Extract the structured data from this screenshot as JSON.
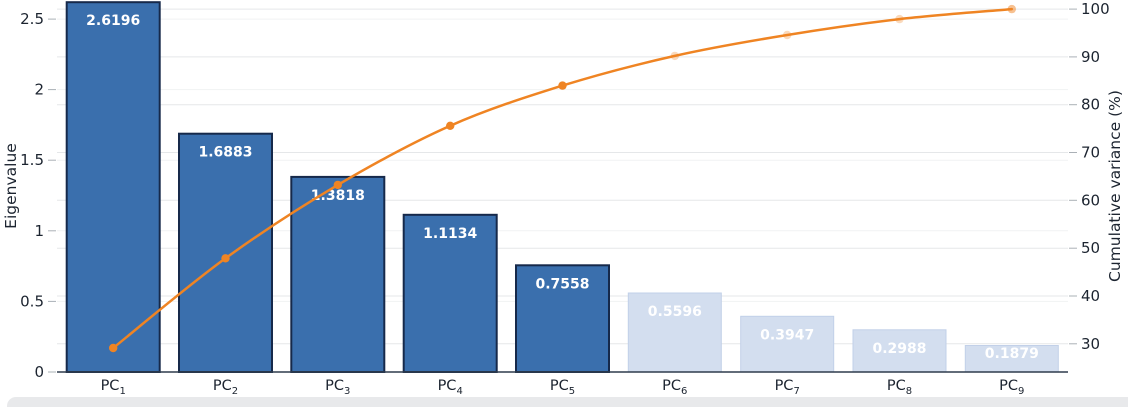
{
  "chart_data": {
    "type": "bar",
    "subtype": "scree-pareto (bars + cumulative line, dual y-axis)",
    "title": "",
    "legend": "none",
    "grid": true,
    "categories": [
      "PC1",
      "PC2",
      "PC3",
      "PC4",
      "PC5",
      "PC6",
      "PC7",
      "PC8",
      "PC9"
    ],
    "x_axis": {
      "tick_prefix": "PC",
      "tick_subscripts": [
        "1",
        "2",
        "3",
        "4",
        "5",
        "6",
        "7",
        "8",
        "9"
      ]
    },
    "series": [
      {
        "name": "Eigenvalue",
        "type": "bar",
        "axis": "left",
        "values": [
          2.6196,
          1.6883,
          1.3818,
          1.1134,
          0.7558,
          0.5596,
          0.3947,
          0.2988,
          0.1879
        ],
        "highlighted": [
          true,
          true,
          true,
          true,
          true,
          false,
          false,
          false,
          false
        ]
      },
      {
        "name": "Cumulative variance",
        "type": "line",
        "axis": "right",
        "values": [
          29.11,
          47.87,
          63.22,
          75.59,
          83.99,
          90.21,
          94.59,
          97.91,
          100.0
        ],
        "marker_emphasis": [
          1,
          1,
          1,
          1,
          1,
          0.3,
          0.3,
          0.3,
          0.5
        ]
      }
    ],
    "bar_labels": [
      "2.6196",
      "1.6883",
      "1.3818",
      "1.1134",
      "0.7558",
      "0.5596",
      "0.3947",
      "0.2988",
      "0.1879"
    ],
    "left_axis": {
      "title": "Eigenvalue",
      "tick_values": [
        0,
        0.5,
        1,
        1.5,
        2,
        2.5
      ],
      "tick_labels": [
        "0",
        "0.5",
        "1",
        "1.5",
        "2",
        "2.5"
      ],
      "range": [
        0,
        2.635
      ]
    },
    "right_axis": {
      "title": "Cumulative variance (%)",
      "tick_values": [
        30,
        40,
        50,
        60,
        70,
        80,
        90,
        100
      ],
      "tick_labels": [
        "30",
        "40",
        "50",
        "60",
        "70",
        "80",
        "90",
        "100"
      ],
      "range": [
        24.1,
        101.9
      ]
    },
    "colors": {
      "bar_fill": "#3a6fad",
      "bar_border": "#16294a",
      "bar_muted_fill": "#d3deef",
      "bar_muted_border": "#c2d0e8",
      "bar_label_text": "#ffffff",
      "line": "#ef8423",
      "axis_line": "#2f3c4d",
      "grid_major": "#e5e7e9",
      "grid_minor": "#f1f2f3",
      "tick_mark": "#aab0b6"
    }
  }
}
